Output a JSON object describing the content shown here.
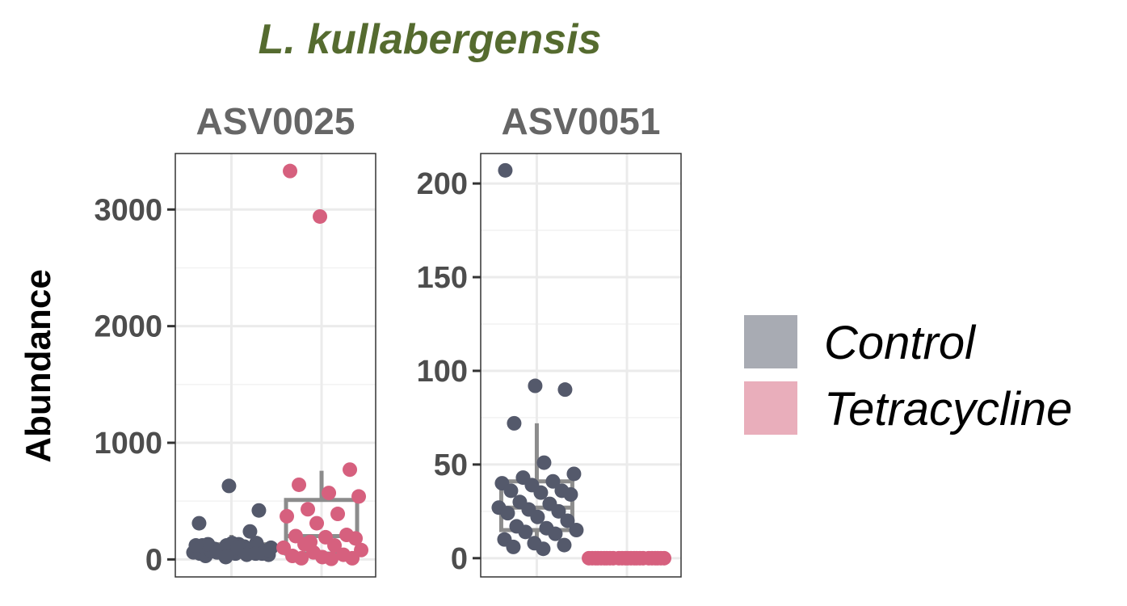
{
  "chart_data": {
    "type": "box",
    "title": "L. kullabergensis",
    "title_color": "#556b2f",
    "ylabel": "Abundance",
    "xlabel": "",
    "grid": true,
    "legend_placement": "right",
    "legend": [
      {
        "name": "Control",
        "color": "#a8abb3"
      },
      {
        "name": "Tetracycline",
        "color": "#e9aebb"
      }
    ],
    "point_colors": {
      "Control": "#54596b",
      "Tetracycline": "#d6607e"
    },
    "box_color": "#8c8c8c",
    "groups": [
      "Control",
      "Tetracycline"
    ],
    "facets": [
      {
        "label": "ASV0025",
        "ylim": [
          -150,
          3480
        ],
        "yticks": [
          0,
          1000,
          2000,
          3000
        ],
        "yticklabels": [
          "0",
          "1000",
          "2000",
          "3000"
        ],
        "boxes": [
          {
            "group": "Control",
            "q1": 60,
            "median": 100,
            "q3": 130,
            "whisker_low": 30,
            "whisker_high": 210
          },
          {
            "group": "Tetracycline",
            "q1": 50,
            "median": 200,
            "q3": 510,
            "whisker_low": 10,
            "whisker_high": 760
          }
        ],
        "points": [
          {
            "group": "Control",
            "values": [
              50,
              70,
              90,
              110,
              130,
              40,
              60,
              80,
              100,
              120,
              140,
              30,
              50,
              70,
              90,
              110,
              60,
              80,
              100,
              120,
              140,
              50,
              70,
              90,
              100,
              60,
              240,
              310,
              630,
              420,
              130,
              100,
              80,
              60,
              40,
              120,
              20,
              50
            ]
          },
          {
            "group": "Tetracycline",
            "values": [
              3330,
              2940,
              770,
              640,
              570,
              540,
              430,
              390,
              370,
              310,
              210,
              200,
              190,
              180,
              130,
              120,
              100,
              60,
              40,
              30,
              20,
              10,
              10,
              5,
              80,
              150
            ]
          }
        ]
      },
      {
        "label": "ASV0051",
        "ylim": [
          -10,
          216
        ],
        "yticks": [
          0,
          50,
          100,
          150,
          200
        ],
        "yticklabels": [
          "0",
          "50",
          "100",
          "150",
          "200"
        ],
        "boxes": [
          {
            "group": "Control",
            "q1": 15,
            "median": 27,
            "q3": 41,
            "whisker_low": 7,
            "whisker_high": 72
          },
          {
            "group": "Tetracycline",
            "q1": 0,
            "median": 0,
            "q3": 0,
            "whisker_low": 0,
            "whisker_high": 0
          }
        ],
        "points": [
          {
            "group": "Control",
            "values": [
              207,
              92,
              90,
              72,
              51,
              45,
              43,
              41,
              40,
              39,
              36,
              36,
              35,
              34,
              30,
              29,
              27,
              26,
              25,
              24,
              22,
              20,
              17,
              16,
              15,
              14,
              13,
              10,
              8,
              7,
              6,
              5
            ]
          },
          {
            "group": "Tetracycline",
            "values": [
              0,
              0,
              0,
              0,
              0,
              0,
              0,
              0,
              0,
              0,
              0,
              0,
              0,
              0,
              0,
              0,
              0,
              0,
              0,
              0,
              0,
              0,
              0,
              0
            ]
          }
        ]
      }
    ]
  }
}
